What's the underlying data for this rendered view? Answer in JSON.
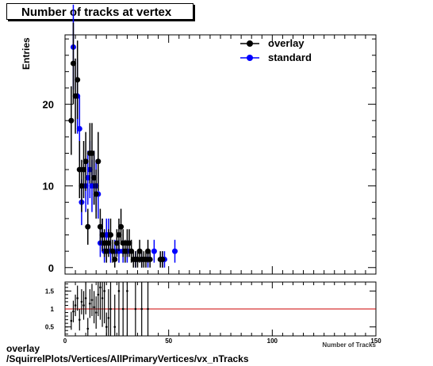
{
  "chart_data": [
    {
      "type": "scatter",
      "title": "Number of tracks at vertex",
      "ylabel": "Entries",
      "xlabel": "Number of Tracks",
      "xlim": [
        0,
        150
      ],
      "ylim": [
        -0.8,
        28.5
      ],
      "yticks": [
        0,
        10,
        20
      ],
      "legend_position": "top-right",
      "series": [
        {
          "name": "overlay",
          "color": "#000000",
          "x": [
            3,
            4,
            5,
            6,
            7,
            8,
            9,
            10,
            11,
            12,
            13,
            14,
            15,
            16,
            17,
            18,
            19,
            20,
            21,
            22,
            23,
            24,
            25,
            26,
            27,
            28,
            29,
            30,
            31,
            32,
            33,
            34,
            35,
            36,
            37,
            38,
            39,
            40,
            41,
            46,
            47
          ],
          "y": [
            18,
            25,
            21,
            23,
            12,
            10,
            12,
            13,
            5,
            14,
            14,
            11,
            9,
            13,
            5,
            4,
            3,
            2,
            3,
            4,
            2,
            1,
            3,
            4,
            5,
            3,
            2,
            3,
            3,
            2,
            1,
            1,
            1,
            2,
            1,
            1,
            1,
            2,
            1,
            1,
            1
          ],
          "err": [
            4.2,
            5,
            4.6,
            4.8,
            3.5,
            3.2,
            3.5,
            3.6,
            2.2,
            3.7,
            3.7,
            3.3,
            3,
            3.6,
            2.2,
            2,
            1.7,
            1.4,
            1.7,
            2,
            1.4,
            1,
            1.7,
            2,
            2.2,
            1.7,
            1.4,
            1.7,
            1.7,
            1.4,
            1,
            1,
            1,
            1.4,
            1,
            1,
            1,
            1.4,
            1,
            1,
            1
          ]
        },
        {
          "name": "standard",
          "color": "#0000ff",
          "x": [
            4,
            6,
            7,
            8,
            10,
            11,
            12,
            13,
            14,
            15,
            16,
            17,
            18,
            19,
            20,
            21,
            22,
            24,
            26,
            28,
            30,
            34,
            37,
            40,
            43,
            47,
            48,
            53
          ],
          "y": [
            27,
            21,
            17,
            8,
            10,
            11,
            12,
            10,
            11,
            10,
            9,
            3,
            4,
            2,
            4,
            4,
            2,
            2,
            2,
            2,
            2,
            1,
            1,
            1,
            2,
            1,
            1,
            2
          ],
          "err": [
            5.2,
            4.6,
            4.1,
            2.8,
            3.2,
            3.3,
            3.5,
            3.2,
            3.3,
            3.2,
            3,
            1.7,
            2,
            1.4,
            2,
            2,
            1.4,
            1.4,
            1.4,
            1.4,
            1.4,
            1,
            1,
            1,
            1.4,
            1,
            1,
            1.4
          ]
        }
      ]
    },
    {
      "type": "scatter",
      "title": "",
      "ylabel": "",
      "xlabel": "Number of Tracks",
      "xlim": [
        0,
        150
      ],
      "ylim": [
        0.25,
        1.75
      ],
      "yticks": [
        0.5,
        1,
        1.5
      ],
      "xticks": [
        0,
        50,
        100,
        150
      ],
      "reference_line": 1,
      "series": [
        {
          "name": "ratio",
          "color": "#000000",
          "x": [
            3,
            4,
            5,
            6,
            7,
            8,
            9,
            10,
            11,
            12,
            13,
            14,
            15,
            16,
            17,
            18,
            19,
            20,
            21,
            22,
            24,
            26,
            28,
            30,
            34,
            37,
            40
          ],
          "y": [
            0.67,
            0.93,
            1.1,
            1.3,
            0.7,
            1.2,
            1.1,
            1.3,
            0.45,
            1.15,
            1.25,
            1.05,
            0.9,
            1.4,
            1.6,
            1.3,
            1.5,
            0.5,
            0.75,
            1.0,
            0.5,
            1.5,
            1.0,
            1.5,
            1.0,
            1.0,
            1.0
          ],
          "err": [
            0.25,
            0.3,
            0.3,
            0.35,
            0.3,
            0.35,
            0.4,
            0.45,
            0.3,
            0.4,
            0.45,
            0.45,
            0.45,
            0.6,
            0.9,
            0.8,
            0.9,
            0.4,
            0.8,
            0.9,
            0.9,
            1.5,
            1.5,
            1.5,
            1.5,
            1.5,
            1.5
          ]
        }
      ]
    }
  ],
  "ticks": {
    "main_y": [
      "0",
      "10",
      "20"
    ],
    "ratio_y": [
      "0.5",
      "1",
      "1.5"
    ],
    "ratio_x": [
      "0",
      "50",
      "100",
      "150"
    ]
  },
  "footer": {
    "line1": "overlay",
    "line2": "/SquirrelPlots/Vertices/AllPrimaryVertices/vx_nTracks"
  }
}
